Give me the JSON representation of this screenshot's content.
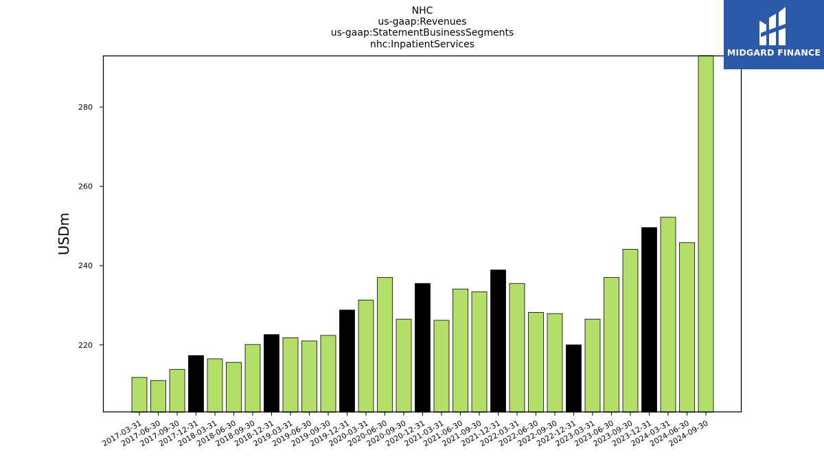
{
  "logo": {
    "text": "MIDGARD FINANCE"
  },
  "chart_data": {
    "type": "bar",
    "title_lines": [
      "NHC",
      "us-gaap:Revenues",
      "us-gaap:StatementBusinessSegments",
      "nhc:InpatientServices"
    ],
    "ylabel": "USDm",
    "xlabel": "",
    "ylim": [
      203,
      293
    ],
    "yticks": [
      220,
      240,
      260,
      280
    ],
    "grid": false,
    "colors": {
      "quarter": "#b3de69",
      "year_end": "#000000",
      "edge": "#000000"
    },
    "categories": [
      "2017-03-31",
      "2017-06-30",
      "2017-09-30",
      "2017-12-31",
      "2018-03-31",
      "2018-06-30",
      "2018-09-30",
      "2018-12-31",
      "2019-03-31",
      "2019-06-30",
      "2019-09-30",
      "2019-12-31",
      "2020-03-31",
      "2020-06-30",
      "2020-09-30",
      "2020-12-31",
      "2021-03-31",
      "2021-06-30",
      "2021-09-30",
      "2021-12-31",
      "2022-03-31",
      "2022-06-30",
      "2022-09-30",
      "2022-12-31",
      "2023-03-31",
      "2023-06-30",
      "2023-09-30",
      "2023-12-31",
      "2024-03-31",
      "2024-06-30",
      "2024-09-30"
    ],
    "values": [
      211.8,
      211.0,
      213.8,
      217.3,
      216.5,
      215.6,
      220.1,
      222.6,
      221.8,
      221.0,
      222.4,
      228.8,
      231.3,
      237.0,
      226.5,
      235.5,
      226.2,
      234.1,
      233.4,
      238.9,
      235.5,
      228.2,
      227.9,
      220.0,
      226.5,
      237.0,
      244.1,
      249.6,
      252.2,
      245.8,
      293.0
    ],
    "highlight": [
      false,
      false,
      false,
      true,
      false,
      false,
      false,
      true,
      false,
      false,
      false,
      true,
      false,
      false,
      false,
      true,
      false,
      false,
      false,
      true,
      false,
      false,
      false,
      true,
      false,
      false,
      false,
      true,
      false,
      false,
      false
    ]
  }
}
